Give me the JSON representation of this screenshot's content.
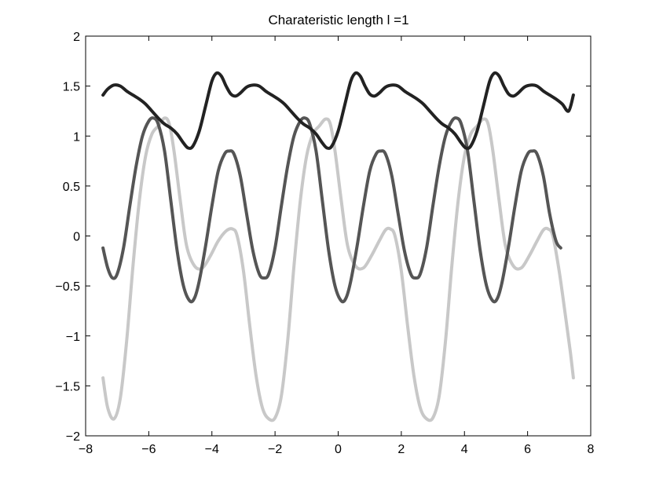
{
  "chart_data": {
    "type": "line",
    "title": "Charateristic length l =1",
    "xlabel": "",
    "ylabel": "",
    "xlim": [
      -8,
      8
    ],
    "ylim": [
      -2,
      2
    ],
    "xticks": [
      -8,
      -6,
      -4,
      -2,
      0,
      2,
      4,
      6,
      8
    ],
    "yticks": [
      -2,
      -1.5,
      -1,
      -0.5,
      0,
      0.5,
      1,
      1.5,
      2
    ],
    "xtick_labels": [
      "−8",
      "−6",
      "−4",
      "−2",
      "0",
      "2",
      "4",
      "6",
      "8"
    ],
    "ytick_labels": [
      "−2",
      "−1.5",
      "−1",
      "−0.5",
      "0",
      "0.5",
      "1",
      "1.5",
      "2"
    ],
    "grid": false,
    "legend": "none",
    "series": [
      {
        "color": "#c8c8c8",
        "points": [
          [
            -7.45,
            -1.42
          ],
          [
            -7.3,
            -1.72
          ],
          [
            -7.1,
            -1.83
          ],
          [
            -6.9,
            -1.62
          ],
          [
            -6.7,
            -1.05
          ],
          [
            -6.5,
            -0.3
          ],
          [
            -6.3,
            0.35
          ],
          [
            -6.1,
            0.8
          ],
          [
            -5.9,
            1.02
          ],
          [
            -5.7,
            1.1
          ],
          [
            -5.5,
            1.18
          ],
          [
            -5.35,
            1.12
          ],
          [
            -5.2,
            0.85
          ],
          [
            -5.0,
            0.35
          ],
          [
            -4.8,
            -0.1
          ],
          [
            -4.55,
            -0.3
          ],
          [
            -4.3,
            -0.32
          ],
          [
            -4.05,
            -0.2
          ],
          [
            -3.8,
            -0.05
          ],
          [
            -3.55,
            0.05
          ],
          [
            -3.35,
            0.07
          ],
          [
            -3.2,
            0.0
          ],
          [
            -3.0,
            -0.35
          ],
          [
            -2.8,
            -0.9
          ],
          [
            -2.6,
            -1.4
          ],
          [
            -2.4,
            -1.72
          ],
          [
            -2.2,
            -1.83
          ],
          [
            -2.0,
            -1.82
          ],
          [
            -1.8,
            -1.6
          ],
          [
            -1.6,
            -1.05
          ],
          [
            -1.4,
            -0.3
          ],
          [
            -1.2,
            0.35
          ],
          [
            -1.0,
            0.8
          ],
          [
            -0.8,
            1.02
          ],
          [
            -0.6,
            1.1
          ],
          [
            -0.4,
            1.17
          ],
          [
            -0.25,
            1.12
          ],
          [
            -0.1,
            0.85
          ],
          [
            0.1,
            0.35
          ],
          [
            0.3,
            -0.1
          ],
          [
            0.55,
            -0.3
          ],
          [
            0.8,
            -0.32
          ],
          [
            1.05,
            -0.2
          ],
          [
            1.3,
            -0.05
          ],
          [
            1.5,
            0.06
          ],
          [
            1.65,
            0.07
          ],
          [
            1.8,
            0.0
          ],
          [
            2.0,
            -0.35
          ],
          [
            2.2,
            -0.9
          ],
          [
            2.4,
            -1.4
          ],
          [
            2.6,
            -1.72
          ],
          [
            2.8,
            -1.83
          ],
          [
            3.0,
            -1.82
          ],
          [
            3.2,
            -1.6
          ],
          [
            3.4,
            -1.05
          ],
          [
            3.6,
            -0.3
          ],
          [
            3.8,
            0.35
          ],
          [
            4.0,
            0.8
          ],
          [
            4.2,
            1.02
          ],
          [
            4.4,
            1.1
          ],
          [
            4.6,
            1.17
          ],
          [
            4.75,
            1.12
          ],
          [
            4.9,
            0.85
          ],
          [
            5.1,
            0.35
          ],
          [
            5.3,
            -0.1
          ],
          [
            5.55,
            -0.3
          ],
          [
            5.8,
            -0.32
          ],
          [
            6.05,
            -0.2
          ],
          [
            6.3,
            -0.05
          ],
          [
            6.5,
            0.06
          ],
          [
            6.65,
            0.07
          ],
          [
            6.8,
            0.0
          ],
          [
            7.0,
            -0.35
          ],
          [
            7.2,
            -0.8
          ],
          [
            7.35,
            -1.15
          ],
          [
            7.45,
            -1.42
          ]
        ]
      },
      {
        "color": "#555555",
        "points": [
          [
            -7.45,
            -0.12
          ],
          [
            -7.3,
            -0.32
          ],
          [
            -7.15,
            -0.42
          ],
          [
            -7.0,
            -0.38
          ],
          [
            -6.8,
            -0.12
          ],
          [
            -6.6,
            0.3
          ],
          [
            -6.4,
            0.7
          ],
          [
            -6.2,
            1.0
          ],
          [
            -6.0,
            1.15
          ],
          [
            -5.85,
            1.18
          ],
          [
            -5.7,
            1.12
          ],
          [
            -5.5,
            0.85
          ],
          [
            -5.3,
            0.35
          ],
          [
            -5.1,
            -0.15
          ],
          [
            -4.9,
            -0.5
          ],
          [
            -4.7,
            -0.65
          ],
          [
            -4.55,
            -0.62
          ],
          [
            -4.4,
            -0.45
          ],
          [
            -4.2,
            -0.1
          ],
          [
            -4.0,
            0.3
          ],
          [
            -3.8,
            0.65
          ],
          [
            -3.6,
            0.82
          ],
          [
            -3.45,
            0.85
          ],
          [
            -3.3,
            0.82
          ],
          [
            -3.1,
            0.6
          ],
          [
            -2.9,
            0.22
          ],
          [
            -2.7,
            -0.15
          ],
          [
            -2.5,
            -0.38
          ],
          [
            -2.35,
            -0.42
          ],
          [
            -2.2,
            -0.38
          ],
          [
            -2.0,
            -0.12
          ],
          [
            -1.8,
            0.3
          ],
          [
            -1.6,
            0.7
          ],
          [
            -1.4,
            1.0
          ],
          [
            -1.2,
            1.15
          ],
          [
            -1.05,
            1.18
          ],
          [
            -0.9,
            1.12
          ],
          [
            -0.7,
            0.85
          ],
          [
            -0.5,
            0.35
          ],
          [
            -0.3,
            -0.15
          ],
          [
            -0.1,
            -0.5
          ],
          [
            0.1,
            -0.65
          ],
          [
            0.25,
            -0.62
          ],
          [
            0.4,
            -0.45
          ],
          [
            0.6,
            -0.1
          ],
          [
            0.8,
            0.3
          ],
          [
            1.0,
            0.65
          ],
          [
            1.2,
            0.82
          ],
          [
            1.35,
            0.85
          ],
          [
            1.5,
            0.82
          ],
          [
            1.7,
            0.6
          ],
          [
            1.9,
            0.22
          ],
          [
            2.1,
            -0.15
          ],
          [
            2.3,
            -0.38
          ],
          [
            2.45,
            -0.42
          ],
          [
            2.6,
            -0.38
          ],
          [
            2.8,
            -0.12
          ],
          [
            3.0,
            0.3
          ],
          [
            3.2,
            0.7
          ],
          [
            3.4,
            1.0
          ],
          [
            3.6,
            1.15
          ],
          [
            3.75,
            1.18
          ],
          [
            3.9,
            1.12
          ],
          [
            4.1,
            0.85
          ],
          [
            4.3,
            0.35
          ],
          [
            4.5,
            -0.15
          ],
          [
            4.7,
            -0.5
          ],
          [
            4.9,
            -0.65
          ],
          [
            5.05,
            -0.62
          ],
          [
            5.2,
            -0.45
          ],
          [
            5.4,
            -0.1
          ],
          [
            5.6,
            0.3
          ],
          [
            5.8,
            0.65
          ],
          [
            6.0,
            0.82
          ],
          [
            6.15,
            0.85
          ],
          [
            6.3,
            0.82
          ],
          [
            6.5,
            0.6
          ],
          [
            6.7,
            0.22
          ],
          [
            6.9,
            -0.05
          ],
          [
            7.05,
            -0.12
          ]
        ]
      },
      {
        "color": "#222222",
        "points": [
          [
            -7.45,
            1.41
          ],
          [
            -7.3,
            1.47
          ],
          [
            -7.1,
            1.51
          ],
          [
            -6.9,
            1.5
          ],
          [
            -6.7,
            1.45
          ],
          [
            -6.5,
            1.41
          ],
          [
            -6.3,
            1.37
          ],
          [
            -6.1,
            1.32
          ],
          [
            -5.9,
            1.25
          ],
          [
            -5.7,
            1.18
          ],
          [
            -5.5,
            1.12
          ],
          [
            -5.3,
            1.08
          ],
          [
            -5.1,
            1.02
          ],
          [
            -4.9,
            0.93
          ],
          [
            -4.75,
            0.88
          ],
          [
            -4.6,
            0.9
          ],
          [
            -4.4,
            1.05
          ],
          [
            -4.2,
            1.3
          ],
          [
            -4.0,
            1.55
          ],
          [
            -3.85,
            1.63
          ],
          [
            -3.7,
            1.6
          ],
          [
            -3.55,
            1.5
          ],
          [
            -3.4,
            1.42
          ],
          [
            -3.25,
            1.4
          ],
          [
            -3.1,
            1.43
          ],
          [
            -2.9,
            1.49
          ],
          [
            -2.7,
            1.51
          ],
          [
            -2.5,
            1.5
          ],
          [
            -2.3,
            1.45
          ],
          [
            -2.1,
            1.41
          ],
          [
            -1.9,
            1.37
          ],
          [
            -1.7,
            1.32
          ],
          [
            -1.5,
            1.25
          ],
          [
            -1.3,
            1.18
          ],
          [
            -1.1,
            1.12
          ],
          [
            -0.9,
            1.08
          ],
          [
            -0.7,
            1.02
          ],
          [
            -0.5,
            0.93
          ],
          [
            -0.35,
            0.88
          ],
          [
            -0.2,
            0.9
          ],
          [
            0.0,
            1.05
          ],
          [
            0.2,
            1.3
          ],
          [
            0.4,
            1.55
          ],
          [
            0.55,
            1.63
          ],
          [
            0.7,
            1.6
          ],
          [
            0.85,
            1.5
          ],
          [
            1.0,
            1.42
          ],
          [
            1.15,
            1.4
          ],
          [
            1.3,
            1.43
          ],
          [
            1.5,
            1.49
          ],
          [
            1.7,
            1.51
          ],
          [
            1.9,
            1.5
          ],
          [
            2.1,
            1.45
          ],
          [
            2.3,
            1.41
          ],
          [
            2.5,
            1.37
          ],
          [
            2.7,
            1.32
          ],
          [
            2.9,
            1.25
          ],
          [
            3.1,
            1.18
          ],
          [
            3.3,
            1.12
          ],
          [
            3.5,
            1.08
          ],
          [
            3.7,
            1.02
          ],
          [
            3.9,
            0.93
          ],
          [
            4.05,
            0.88
          ],
          [
            4.2,
            0.9
          ],
          [
            4.4,
            1.05
          ],
          [
            4.6,
            1.3
          ],
          [
            4.8,
            1.55
          ],
          [
            4.95,
            1.63
          ],
          [
            5.1,
            1.6
          ],
          [
            5.25,
            1.5
          ],
          [
            5.4,
            1.42
          ],
          [
            5.55,
            1.4
          ],
          [
            5.7,
            1.43
          ],
          [
            5.9,
            1.49
          ],
          [
            6.1,
            1.51
          ],
          [
            6.3,
            1.5
          ],
          [
            6.5,
            1.45
          ],
          [
            6.7,
            1.41
          ],
          [
            6.9,
            1.37
          ],
          [
            7.1,
            1.32
          ],
          [
            7.3,
            1.25
          ],
          [
            7.45,
            1.41
          ]
        ]
      }
    ]
  }
}
